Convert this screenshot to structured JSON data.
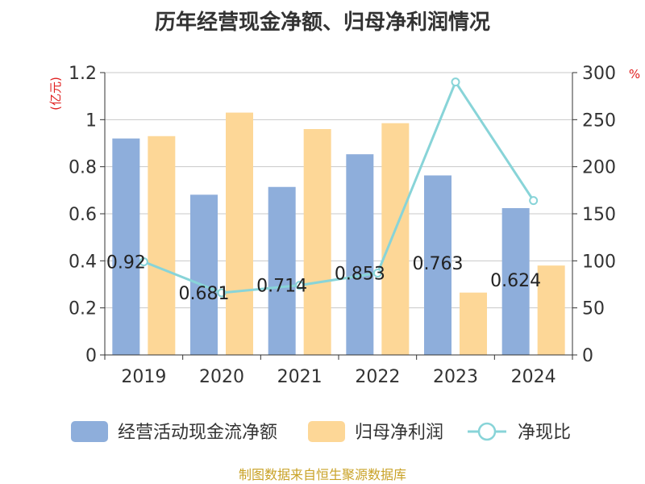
{
  "chart_data": {
    "type": "bar",
    "title": "历年经营现金净额、归母净利润情况",
    "categories": [
      "2019",
      "2020",
      "2021",
      "2022",
      "2023",
      "2024"
    ],
    "y_left": {
      "unit": "(亿元)",
      "ylim": [
        0,
        1.2
      ],
      "ticks": [
        0,
        0.2,
        0.4,
        0.6,
        0.8,
        1,
        1.2
      ]
    },
    "y_right": {
      "unit": "%",
      "ylim": [
        0,
        300
      ],
      "ticks": [
        0,
        50,
        100,
        150,
        200,
        250,
        300
      ]
    },
    "series": [
      {
        "name": "经营活动现金流净额",
        "kind": "bar",
        "axis": "left",
        "color": "#8eaedb",
        "values": [
          0.92,
          0.681,
          0.714,
          0.853,
          0.763,
          0.624
        ]
      },
      {
        "name": "归母净利润",
        "kind": "bar",
        "axis": "left",
        "color": "#fdd797",
        "values": [
          0.93,
          1.03,
          0.96,
          0.985,
          0.265,
          0.38
        ]
      },
      {
        "name": "净现比",
        "kind": "line",
        "axis": "right",
        "color": "#88d4d8",
        "values": [
          99,
          66,
          74,
          87,
          290,
          164
        ]
      }
    ],
    "data_labels": [
      "0.92",
      "0.681",
      "0.714",
      "0.853",
      "0.763",
      "0.624"
    ],
    "grid": true,
    "legend": "bottom"
  },
  "source": "制图数据来自恒生聚源数据库"
}
